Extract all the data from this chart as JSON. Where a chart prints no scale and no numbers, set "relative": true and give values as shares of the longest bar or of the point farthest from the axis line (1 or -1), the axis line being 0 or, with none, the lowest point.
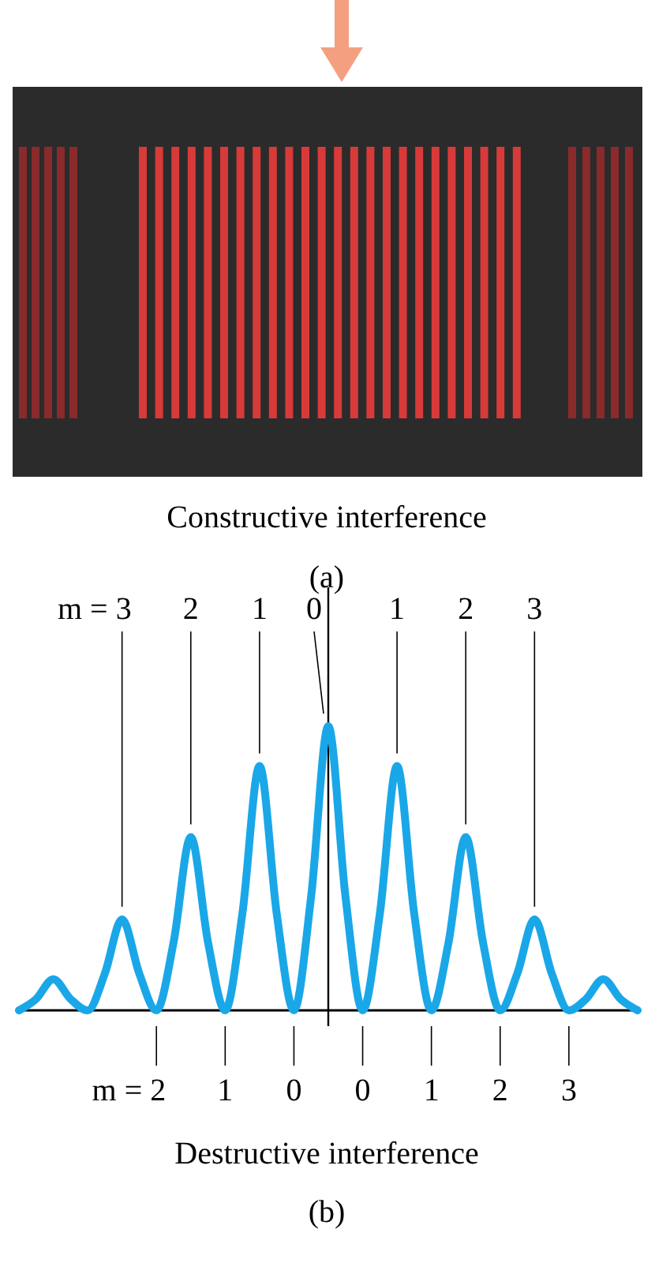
{
  "chart_data": {
    "type": "line",
    "relative": true,
    "color": "#1aa7e8",
    "xlabel": "Destructive interference",
    "categories": [
      null,
      null,
      null,
      null,
      null,
      null,
      null,
      null,
      null,
      null,
      null,
      null,
      null,
      null,
      null,
      null,
      null,
      null,
      null,
      null,
      null,
      null,
      null,
      null,
      null,
      null,
      null,
      null,
      null,
      null,
      null,
      null,
      null,
      null,
      null,
      null,
      null
    ],
    "values": [
      0,
      0.04,
      0.11,
      0.04,
      0,
      0.13,
      0.32,
      0.13,
      0,
      0.24,
      0.61,
      0.24,
      0,
      0.34,
      0.86,
      0.34,
      0,
      0.4,
      1,
      0.4,
      0,
      0.34,
      0.86,
      0.34,
      0,
      0.24,
      0.61,
      0.24,
      0,
      0.13,
      0.32,
      0.13,
      0,
      0.04,
      0.11,
      0.04,
      0
    ],
    "annotations": [
      "Constructive interference",
      "(a)",
      "m = 3",
      "2",
      "1",
      "0",
      "1",
      "2",
      "3",
      "m = 2",
      "1",
      "0",
      "0",
      "1",
      "2",
      "3",
      "(b)"
    ]
  }
}
